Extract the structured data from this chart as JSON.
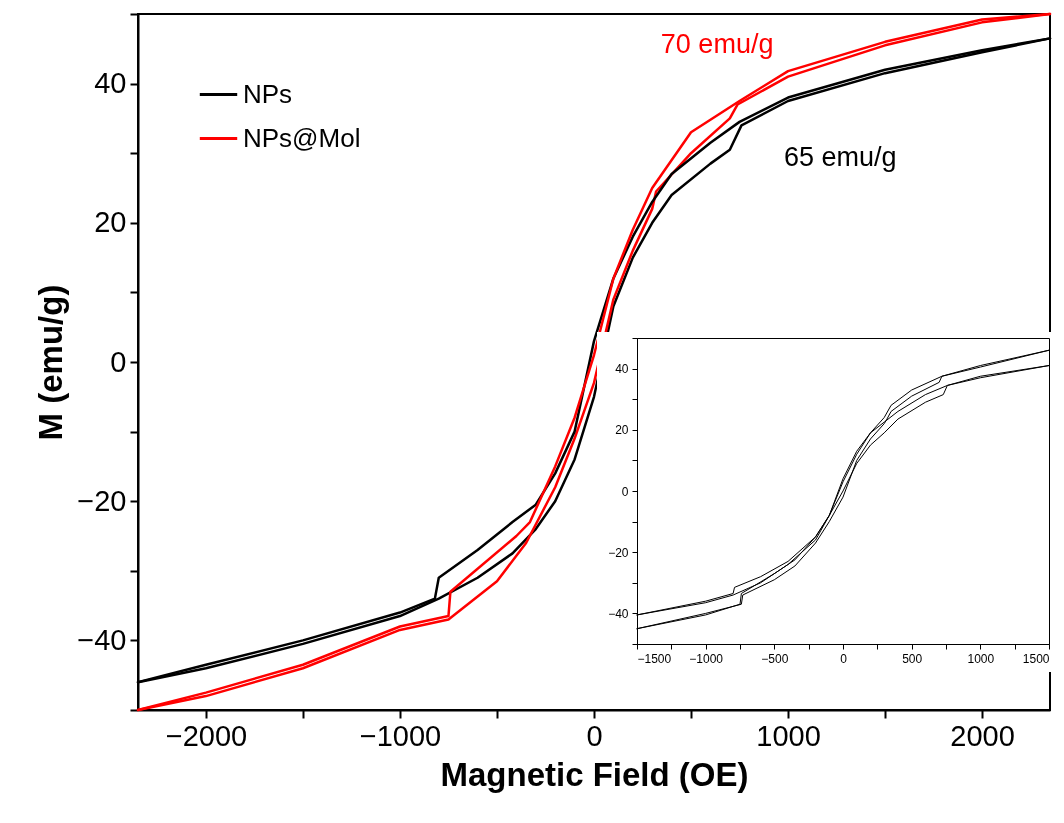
{
  "chart_data": [
    {
      "type": "line",
      "xlabel": "Magnetic Field (OE)",
      "ylabel": "M (emu/g)",
      "xlim": [
        -2350,
        2350
      ],
      "ylim": [
        -50,
        50
      ],
      "xticks": [
        -2000,
        {
          "value": -1500,
          "label": null
        },
        -1000,
        {
          "value": -500,
          "label": null
        },
        0,
        {
          "value": 500,
          "label": null
        },
        1000,
        {
          "value": 1500,
          "label": null
        },
        2000
      ],
      "yticks": [
        {
          "value": -50,
          "label": null
        },
        -40,
        {
          "value": -30,
          "label": null
        },
        -20,
        {
          "value": -10,
          "label": null
        },
        0,
        {
          "value": 10,
          "label": null
        },
        20,
        {
          "value": 30,
          "label": null
        },
        40,
        {
          "value": 50,
          "label": null
        }
      ],
      "legend": "top left",
      "grid": false,
      "marker": "none",
      "line_style": "solid",
      "annotations": [
        "65 emu/g",
        "70 emu/g"
      ],
      "series": [
        {
          "name": "NPs",
          "color": "#000000",
          "x": [
            -2350,
            -2000,
            -1500,
            -1000,
            -800,
            -600,
            -420,
            -300,
            -200,
            -100,
            0,
            100,
            200,
            300,
            400,
            600,
            700,
            760,
            1000,
            1500,
            2000,
            2350
          ],
          "values": [
            -46,
            -44,
            -40.5,
            -36.5,
            -34,
            -31,
            -27.5,
            -24,
            -20,
            -14,
            -5,
            8,
            15,
            20,
            24,
            28.5,
            30.5,
            34,
            37.5,
            41.5,
            44.5,
            46.5
          ]
        },
        {
          "name": "NPs@Mol",
          "color": "#ff0000",
          "x": [
            -2350,
            -2000,
            -1500,
            -1000,
            -750,
            -500,
            -350,
            -200,
            -100,
            0,
            100,
            200,
            300,
            320,
            500,
            700,
            740,
            1000,
            1500,
            2000,
            2350
          ],
          "values": [
            -50,
            -48,
            -44,
            -38.5,
            -37,
            -31.5,
            -26,
            -18,
            -11,
            -3,
            9,
            16,
            22,
            24.5,
            30,
            35,
            37,
            41,
            45.5,
            48.8,
            50
          ]
        },
        {
          "color": "#000000",
          "x": [
            -2350,
            -2000,
            -1500,
            -1000,
            -820,
            -800,
            -600,
            -420,
            -300,
            -200,
            -100,
            0,
            100,
            200,
            300,
            400,
            600,
            750,
            1000,
            1500,
            2000,
            2350
          ],
          "values": [
            -46,
            -43.5,
            -40,
            -36,
            -34,
            -31,
            -27,
            -23,
            -20.5,
            -16,
            -10,
            3,
            12,
            18,
            23,
            27,
            31.5,
            34.5,
            38,
            42,
            44.8,
            46.5
          ]
        },
        {
          "color": "#ff0000",
          "x": [
            -2350,
            -2000,
            -1500,
            -1000,
            -750,
            -740,
            -400,
            -330,
            -200,
            -100,
            0,
            100,
            200,
            300,
            500,
            750,
            1000,
            1500,
            2000,
            2350
          ],
          "values": [
            -50,
            -47.5,
            -43.5,
            -38,
            -36.5,
            -33,
            -25,
            -23,
            -15,
            -8,
            1,
            12,
            19,
            25,
            33,
            37.5,
            41.8,
            46,
            49.2,
            50
          ]
        }
      ]
    },
    {
      "type": "line",
      "xlim": [
        -1500,
        1500
      ],
      "ylim": [
        -50,
        50
      ],
      "xticks": [
        -1500,
        {
          "value": -1250,
          "label": null
        },
        -1000,
        {
          "value": -750,
          "label": null
        },
        -500,
        {
          "value": -250,
          "label": null
        },
        0,
        {
          "value": 250,
          "label": null
        },
        500,
        {
          "value": 750,
          "label": null
        },
        1000,
        {
          "value": 1250,
          "label": null
        },
        1500
      ],
      "yticks": [
        {
          "value": -50,
          "label": null
        },
        -40,
        {
          "value": -30,
          "label": null
        },
        -20,
        {
          "value": -10,
          "label": null
        },
        0,
        {
          "value": 10,
          "label": null
        },
        20,
        {
          "value": 30,
          "label": null
        },
        40,
        {
          "value": 50,
          "label": null
        }
      ],
      "grid": false,
      "marker": "none",
      "line_style": "solid",
      "series": [
        {
          "color": "#000000",
          "x": [
            -1500,
            -1000,
            -800,
            -790,
            -600,
            -400,
            -200,
            -100,
            0,
            100,
            200,
            300,
            400,
            600,
            730,
            760,
            1000,
            1500
          ],
          "values": [
            -40.5,
            -36,
            -33.5,
            -31.5,
            -28,
            -23,
            -15,
            -8,
            0,
            9,
            15,
            19,
            23.5,
            29,
            31.5,
            34.5,
            37,
            41
          ]
        },
        {
          "color": "#000000",
          "x": [
            -1500,
            -1000,
            -800,
            -600,
            -400,
            -200,
            -100,
            0,
            100,
            200,
            300,
            400,
            600,
            760,
            1000,
            1500
          ],
          "values": [
            -40.5,
            -36.5,
            -34,
            -30,
            -24,
            -16,
            -8,
            4,
            13,
            19,
            22.5,
            26,
            31.5,
            34.5,
            37.5,
            41
          ]
        },
        {
          "color": "#000000",
          "x": [
            -1500,
            -1000,
            -740,
            -730,
            -500,
            -350,
            -200,
            -100,
            0,
            100,
            200,
            300,
            320,
            350,
            500,
            700,
            720,
            1000,
            1500
          ],
          "values": [
            -45,
            -40,
            -37,
            -34,
            -29,
            -24.5,
            -17,
            -10,
            -2,
            10,
            17,
            22,
            23.5,
            26,
            31,
            35.5,
            37.5,
            40.5,
            46
          ]
        },
        {
          "color": "#000000",
          "x": [
            -1500,
            -1000,
            -750,
            -740,
            -500,
            -350,
            -200,
            -100,
            0,
            100,
            200,
            300,
            350,
            500,
            720,
            1000,
            1500
          ],
          "values": [
            -45,
            -40.5,
            -37,
            -33.5,
            -27,
            -22.5,
            -15,
            -8,
            3,
            12,
            19,
            24,
            28,
            33,
            37.5,
            41,
            46
          ]
        }
      ]
    }
  ]
}
